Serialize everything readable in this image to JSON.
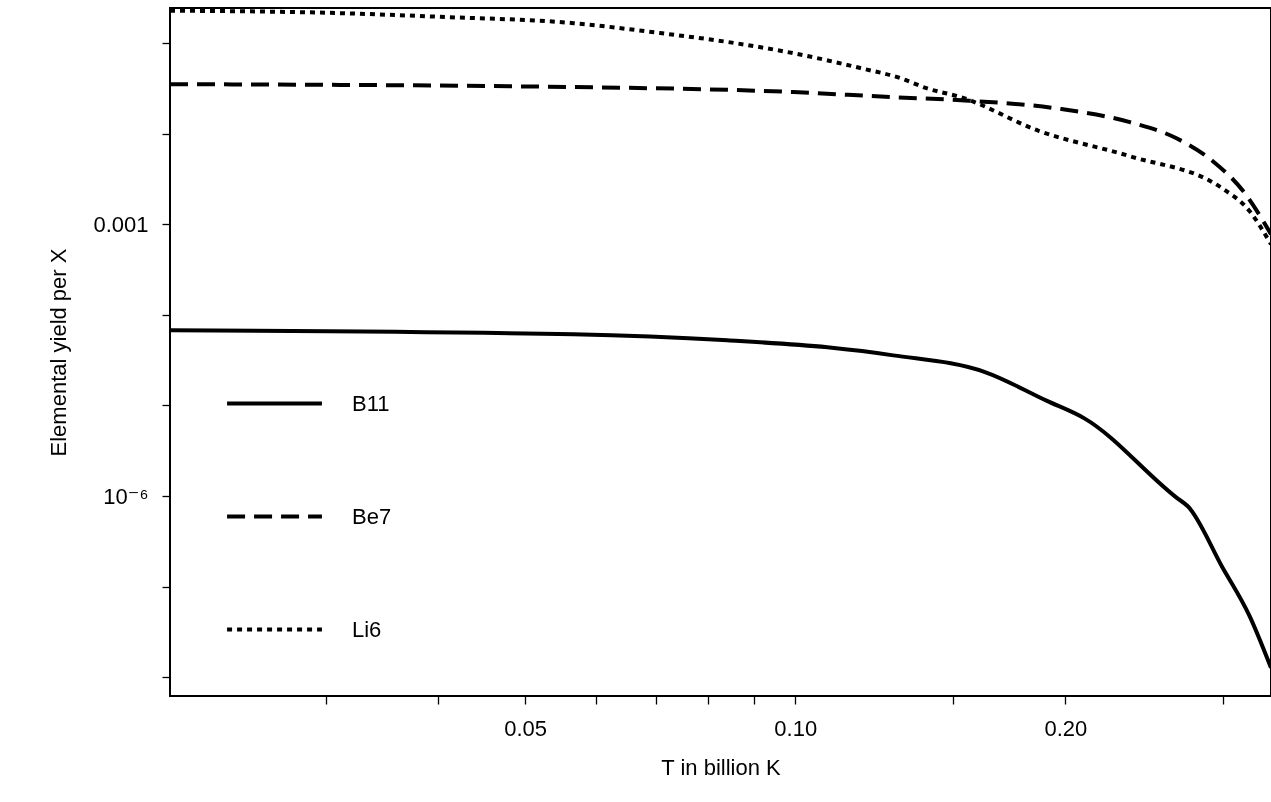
{
  "chart_data": {
    "type": "line",
    "xlabel": "T in billion K",
    "ylabel": "Elemental yield per X",
    "log": "xy",
    "grid": false,
    "legend": "bottom left",
    "xlim": [
      0.0201,
      0.339
    ],
    "ylim": [
      6.2e-09,
      0.244
    ],
    "xticks": [
      {
        "value": 0.03,
        "label": null
      },
      {
        "value": 0.04,
        "label": null
      },
      0.05,
      {
        "value": 0.06,
        "label": null
      },
      {
        "value": 0.07,
        "label": null
      },
      {
        "value": 0.08,
        "label": null
      },
      {
        "value": 0.09,
        "label": null
      },
      {
        "value": 0.1,
        "label": "0.10"
      },
      {
        "value": 0.15,
        "label": null
      },
      {
        "value": 0.2,
        "label": "0.20"
      },
      {
        "value": 0.3,
        "label": null
      }
    ],
    "yticks": [
      {
        "value": 1e-08,
        "label": null
      },
      {
        "value": 1e-07,
        "label": null
      },
      {
        "value": 1e-06,
        "label": "10⁻⁶"
      },
      {
        "value": 1e-05,
        "label": null
      },
      {
        "value": 0.0001,
        "label": null
      },
      0.001,
      {
        "value": 0.01,
        "label": null
      },
      {
        "value": 0.1,
        "label": null
      }
    ],
    "series": [
      {
        "name": "B11",
        "color": "#000000",
        "line_style": "solid",
        "x": [
          0.0201,
          0.0566,
          0.084,
          0.1086,
          0.1286,
          0.163,
          0.1905,
          0.21,
          0.266,
          0.274,
          0.299,
          0.321,
          0.339
        ],
        "values": [
          6.74e-05,
          6.09e-05,
          5.23e-05,
          4.38e-05,
          3.57e-05,
          2.32e-05,
          1.13e-05,
          7.2e-06,
          9.6e-07,
          7.66e-07,
          1.66e-07,
          4.7e-08,
          1.27e-08
        ]
      },
      {
        "name": "Be7",
        "color": "#000000",
        "line_style": "dashed",
        "x": [
          0.0201,
          0.0566,
          0.0995,
          0.1286,
          0.153,
          0.198,
          0.236,
          0.266,
          0.292,
          0.317,
          0.339
        ],
        "values": [
          0.0352,
          0.0327,
          0.0288,
          0.0253,
          0.0234,
          0.0187,
          0.0134,
          0.0089,
          0.00497,
          0.0022,
          0.000775
        ]
      },
      {
        "name": "Li6",
        "color": "#000000",
        "line_style": "dotted",
        "x": [
          0.0201,
          0.0301,
          0.0402,
          0.0566,
          0.0707,
          0.084,
          0.0995,
          0.1182,
          0.131,
          0.14,
          0.153,
          0.187,
          0.236,
          0.299,
          0.321,
          0.339
        ],
        "values": [
          0.228,
          0.216,
          0.195,
          0.166,
          0.129,
          0.103,
          0.0774,
          0.053,
          0.041,
          0.0318,
          0.0253,
          0.0107,
          0.00564,
          0.0025,
          0.00139,
          0.0006
        ]
      }
    ]
  }
}
